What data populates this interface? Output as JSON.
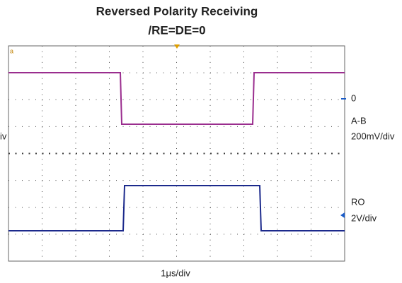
{
  "header": {
    "title": "Reversed Polarity Receiving",
    "subtitle": "/RE=DE=0"
  },
  "labels": {
    "left": "iv",
    "channel_1": {
      "zero": "0",
      "name": "A-B",
      "scale": "200mV/div"
    },
    "channel_2": {
      "name": "RO",
      "scale": "2V/div"
    },
    "timebase": "1μs/div"
  }
}
